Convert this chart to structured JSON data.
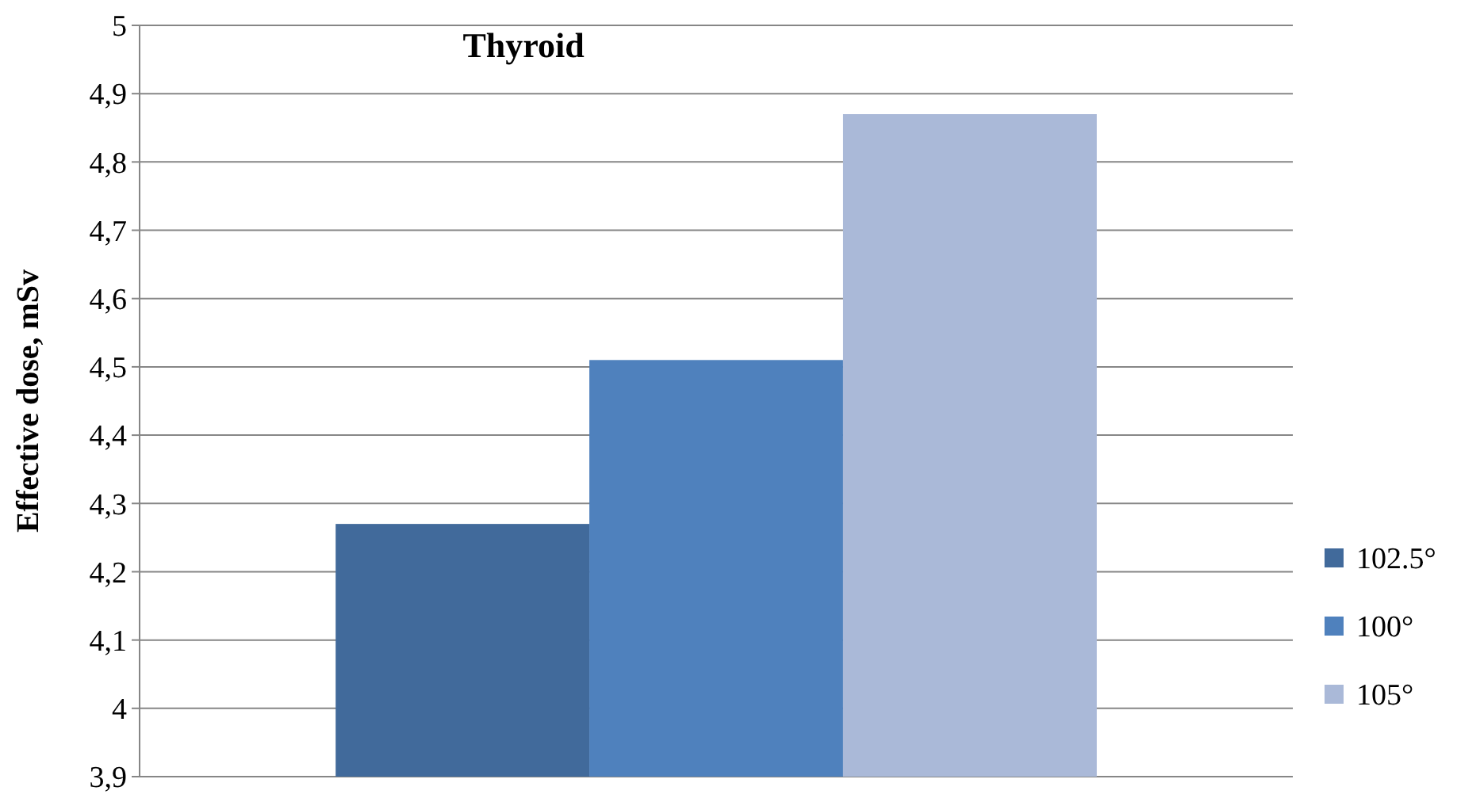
{
  "chart_data": {
    "type": "bar",
    "title": "Thyroid",
    "ylabel": "Effective dose, mSv",
    "categories": [
      null
    ],
    "series": [
      {
        "name": "102.5°",
        "color": "#416a9b",
        "values": [
          4.27
        ]
      },
      {
        "name": "100°",
        "color": "#4f81bd",
        "values": [
          4.51
        ]
      },
      {
        "name": "105°",
        "color": "#aab9d8",
        "values": [
          4.87
        ]
      }
    ],
    "ylim": [
      3.9,
      5
    ],
    "yticks": [
      {
        "value": 3.9,
        "label": "3,9"
      },
      4,
      {
        "value": 4.1,
        "label": "4,1"
      },
      {
        "value": 4.2,
        "label": "4,2"
      },
      {
        "value": 4.3,
        "label": "4,3"
      },
      {
        "value": 4.4,
        "label": "4,4"
      },
      {
        "value": 4.5,
        "label": "4,5"
      },
      {
        "value": 4.6,
        "label": "4,6"
      },
      {
        "value": 4.7,
        "label": "4,7"
      },
      {
        "value": 4.8,
        "label": "4,8"
      },
      {
        "value": 4.9,
        "label": "4,9"
      },
      5
    ],
    "grid": "y",
    "legend": "right"
  }
}
